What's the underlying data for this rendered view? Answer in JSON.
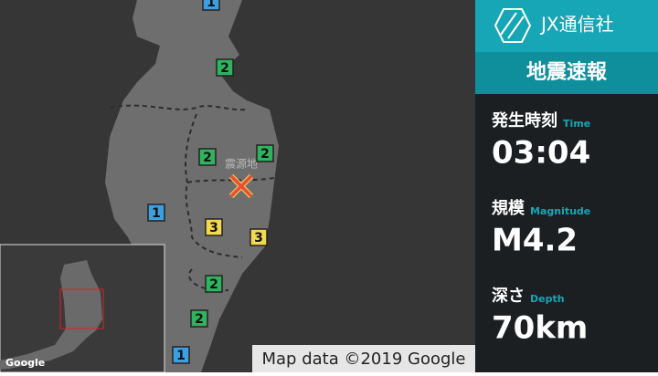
{
  "header": {
    "logo": "JX通信社",
    "title": "地震速報"
  },
  "info": [
    {
      "label": "発生時刻",
      "sublabel": "Time",
      "value": "03:04"
    },
    {
      "label": "規模",
      "sublabel": "Magnitude",
      "value": "M4.2"
    },
    {
      "label": "深さ",
      "sublabel": "Depth",
      "value": "70km"
    }
  ],
  "map": {
    "epicenter_label": "震源地",
    "intensity_markers": [
      1,
      2,
      2,
      2,
      1,
      3,
      3,
      2,
      2,
      1
    ],
    "attribution": "Map data ©2019 Google",
    "inset_logo": "Google"
  }
}
